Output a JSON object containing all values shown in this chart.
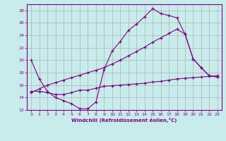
{
  "xlabel": "Windchill (Refroidissement éolien,°C)",
  "bg_color": "#c8ecec",
  "line_color": "#800080",
  "grid_color": "#aaaaaa",
  "xlim": [
    -0.5,
    23.5
  ],
  "ylim": [
    12,
    29
  ],
  "yticks": [
    12,
    14,
    16,
    18,
    20,
    22,
    24,
    26,
    28
  ],
  "xticks": [
    0,
    1,
    2,
    3,
    4,
    5,
    6,
    7,
    8,
    9,
    10,
    11,
    12,
    13,
    14,
    15,
    16,
    17,
    18,
    19,
    20,
    21,
    22,
    23
  ],
  "line1_x": [
    0,
    1,
    2,
    3,
    4,
    5,
    6,
    7,
    8,
    9,
    10,
    11,
    12,
    13,
    14,
    15,
    16,
    17,
    18,
    19,
    20,
    21,
    22,
    23
  ],
  "line1_y": [
    20.0,
    17.0,
    15.0,
    14.0,
    13.5,
    13.0,
    12.2,
    12.2,
    13.3,
    18.5,
    21.5,
    23.0,
    24.8,
    25.8,
    27.0,
    28.3,
    27.5,
    27.2,
    26.8,
    24.2,
    20.2,
    18.8,
    17.5,
    17.3
  ],
  "line2_x": [
    0,
    1,
    2,
    3,
    4,
    5,
    6,
    7,
    8,
    9,
    10,
    11,
    12,
    13,
    14,
    15,
    16,
    17,
    18,
    19,
    20,
    21,
    22,
    23
  ],
  "line2_y": [
    14.8,
    15.4,
    16.0,
    16.4,
    16.8,
    17.2,
    17.6,
    18.0,
    18.4,
    18.8,
    19.4,
    20.0,
    20.7,
    21.4,
    22.1,
    22.9,
    23.6,
    24.3,
    25.0,
    24.2,
    20.2,
    18.8,
    17.5,
    17.3
  ],
  "line3_x": [
    0,
    1,
    2,
    3,
    4,
    5,
    6,
    7,
    8,
    9,
    10,
    11,
    12,
    13,
    14,
    15,
    16,
    17,
    18,
    19,
    20,
    21,
    22,
    23
  ],
  "line3_y": [
    15.0,
    15.0,
    14.8,
    14.5,
    14.5,
    14.8,
    15.2,
    15.2,
    15.5,
    15.8,
    15.9,
    16.0,
    16.1,
    16.2,
    16.3,
    16.5,
    16.6,
    16.8,
    17.0,
    17.1,
    17.2,
    17.3,
    17.4,
    17.5
  ]
}
